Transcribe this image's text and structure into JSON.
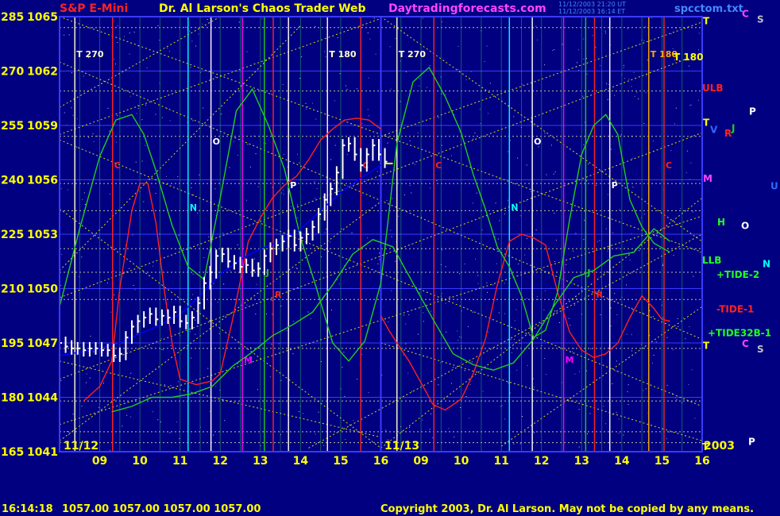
{
  "header": {
    "symbol": "S&P E-Mini",
    "author": "Dr. Al Larson's Chaos Trader Web",
    "site": "Daytradingforecasts.com",
    "stamp_line1": "11/12/2003 21:20 UT",
    "stamp_line2": "11/12/2003 16:14 ET",
    "file": "spcctom.txt"
  },
  "footer": {
    "time": "16:14:18",
    "ohlc": "1057.00 1057.00 1057.00 1057.00",
    "copyright": "Copyright 2003, Dr. Al Larson. May not be copied by any means."
  },
  "colors": {
    "background": "#000080",
    "price_bars": "#ffffff",
    "red_curve": "#ff2020",
    "green_curve": "#22cc22",
    "blue_curve": "#0000ff",
    "gann_lines": "#ffff00",
    "magenta": "#ff00ff",
    "cyan": "#00ffff",
    "title_red": "#ff2222",
    "title_yellow": "#ffff00",
    "title_magenta": "#ff44ff"
  },
  "chart_data": {
    "type": "line",
    "title": "S&P E-Mini",
    "xlabel": "",
    "ylabel": "",
    "left_axis_labels": [
      "285",
      "270",
      "255",
      "240",
      "225",
      "210",
      "195",
      "180",
      "165"
    ],
    "price_labels": [
      "1065",
      "1062",
      "1059",
      "1056",
      "1053",
      "1050",
      "1047",
      "1044",
      "1041"
    ],
    "ylim": [
      1041,
      1065
    ],
    "x_ticks": [
      "09",
      "10",
      "11",
      "12",
      "13",
      "14",
      "15",
      "16",
      "09",
      "10",
      "11",
      "12",
      "13",
      "14",
      "15",
      "16"
    ],
    "date_labels": [
      "11/12",
      "11/13",
      "2003"
    ],
    "grid": true,
    "series": [
      {
        "kind": "price",
        "x": [
          8.0,
          8.15,
          8.3,
          8.45,
          8.6,
          8.75,
          8.9,
          9.05,
          9.2,
          9.35,
          9.5,
          9.65,
          9.8,
          9.95,
          10.1,
          10.25,
          10.4,
          10.55,
          10.7,
          10.85,
          11.0,
          11.15,
          11.3,
          11.45,
          11.6,
          11.75,
          11.9,
          12.05,
          12.2,
          12.35,
          12.5,
          12.65,
          12.8,
          12.95,
          13.1,
          13.25,
          13.4,
          13.55,
          13.7,
          13.85,
          14.0,
          14.15,
          14.3,
          14.45,
          14.6,
          14.75,
          14.9,
          15.05,
          15.2,
          15.35,
          15.5,
          15.65,
          15.8,
          15.95,
          16.1
        ],
        "values": [
          1047.0,
          1046.8,
          1046.7,
          1046.7,
          1046.6,
          1046.7,
          1046.7,
          1046.6,
          1046.6,
          1046.3,
          1046.4,
          1047.3,
          1047.9,
          1048.2,
          1048.4,
          1048.6,
          1048.3,
          1048.5,
          1048.4,
          1048.7,
          1048.2,
          1048.1,
          1048.4,
          1049.2,
          1050.3,
          1050.9,
          1051.8,
          1051.9,
          1051.5,
          1051.4,
          1051.2,
          1051.3,
          1051.0,
          1051.1,
          1051.8,
          1052.2,
          1052.4,
          1052.6,
          1052.9,
          1052.4,
          1052.8,
          1053.0,
          1053.4,
          1054.1,
          1054.9,
          1055.5,
          1056.4,
          1057.9,
          1058.0,
          1057.4,
          1056.8,
          1057.4,
          1057.9,
          1057.4,
          1057.0
        ]
      },
      {
        "kind": "red",
        "x": [
          8.6,
          9.0,
          9.3,
          9.5,
          9.8,
          10.0,
          10.2,
          10.4,
          10.6,
          10.8,
          11.0,
          11.4,
          11.8,
          12.0,
          12.3,
          12.7,
          13.0,
          13.3,
          13.6,
          13.9,
          14.2,
          14.5,
          14.8,
          15.1,
          15.4,
          15.7,
          16.0
        ],
        "values": [
          1043.8,
          1044.6,
          1046.0,
          1050.0,
          1054.3,
          1055.8,
          1055.8,
          1053.6,
          1050.0,
          1047.0,
          1045.0,
          1044.7,
          1044.9,
          1045.3,
          1048.2,
          1052.6,
          1053.9,
          1055.0,
          1055.7,
          1056.2,
          1057.1,
          1058.2,
          1058.8,
          1059.3,
          1059.4,
          1059.3,
          1058.8
        ]
      },
      {
        "kind": "red",
        "x": [
          16.0,
          16.2,
          16.4,
          16.7,
          17.0,
          17.3,
          17.6,
          18.0,
          18.3,
          18.6,
          18.9,
          19.2,
          19.5,
          19.8,
          20.1,
          20.4,
          20.7,
          21.0,
          21.3,
          21.6,
          21.9,
          22.2,
          22.5,
          22.8,
          23.0,
          23.2
        ],
        "values": [
          1048.5,
          1047.7,
          1047.0,
          1046.0,
          1044.8,
          1043.6,
          1043.3,
          1043.9,
          1045.3,
          1047.2,
          1050.2,
          1052.6,
          1053.0,
          1052.8,
          1052.4,
          1049.8,
          1047.6,
          1046.6,
          1046.2,
          1046.4,
          1047.0,
          1048.4,
          1049.6,
          1048.9,
          1048.3,
          1048.2
        ]
      },
      {
        "kind": "green",
        "x": [
          8.0,
          8.5,
          9.0,
          9.4,
          9.8,
          10.1,
          10.4,
          10.8,
          11.2,
          11.6,
          12.0,
          12.4,
          12.8,
          13.2,
          13.6,
          14.0,
          14.4,
          14.8,
          15.2,
          15.6,
          16.0,
          16.4,
          16.8,
          17.2,
          17.6,
          18.0,
          18.3,
          18.6,
          18.9,
          19.2,
          19.5,
          19.8,
          20.1,
          20.4,
          20.7,
          21.0,
          21.3,
          21.6,
          21.9,
          22.2,
          22.5,
          22.8,
          23.2
        ],
        "values": [
          1049.0,
          1053.3,
          1057.3,
          1059.3,
          1059.6,
          1058.5,
          1056.5,
          1053.5,
          1051.2,
          1050.5,
          1055.0,
          1059.8,
          1061.0,
          1059.0,
          1056.6,
          1052.8,
          1050.0,
          1047.0,
          1046.0,
          1047.1,
          1050.3,
          1058.0,
          1061.4,
          1062.2,
          1060.6,
          1058.6,
          1056.3,
          1054.4,
          1052.3,
          1051.2,
          1049.6,
          1047.3,
          1047.7,
          1049.8,
          1053.8,
          1057.4,
          1059.0,
          1059.6,
          1058.5,
          1054.9,
          1053.4,
          1052.5,
          1052.0
        ]
      },
      {
        "kind": "green",
        "x": [
          9.3,
          9.8,
          10.3,
          10.8,
          11.3,
          11.8,
          12.3,
          12.8,
          13.3,
          13.8,
          14.3,
          14.8,
          15.3,
          15.8,
          16.3,
          16.8,
          17.3,
          17.8,
          18.3,
          18.8,
          19.3,
          19.8,
          20.3,
          20.8,
          21.3,
          21.8,
          22.3,
          22.8,
          23.2
        ],
        "values": [
          1043.2,
          1043.5,
          1044.0,
          1044.0,
          1044.2,
          1044.6,
          1045.7,
          1046.5,
          1047.4,
          1048.0,
          1048.7,
          1050.2,
          1051.9,
          1052.7,
          1052.3,
          1050.3,
          1048.3,
          1046.4,
          1045.8,
          1045.5,
          1045.9,
          1047.2,
          1049.0,
          1050.6,
          1051.0,
          1051.8,
          1052.0,
          1053.3,
          1052.6
        ]
      },
      {
        "kind": "blue",
        "x": [
          8.0,
          8.8,
          9.5,
          10.0,
          10.5,
          11.0,
          11.5,
          12.0,
          12.5,
          13.0,
          13.5,
          14.0,
          14.5,
          15.0,
          15.5,
          16.0
        ],
        "values": [
          1046.3,
          1046.6,
          1047.0,
          1047.5,
          1048.0,
          1048.6,
          1049.6,
          1050.8,
          1051.6,
          1052.2,
          1052.6,
          1053.3,
          1054.3,
          1055.3,
          1056.1,
          1056.8
        ]
      }
    ],
    "vertical_lines": [
      {
        "x": 8.38,
        "color": "#ffffcc",
        "label": "T 270"
      },
      {
        "x": 9.32,
        "color": "#ff2222",
        "label": "C"
      },
      {
        "x": 11.2,
        "color": "#00ffff",
        "label": "N"
      },
      {
        "x": 11.77,
        "color": "#ffffff",
        "label": "O"
      },
      {
        "x": 12.55,
        "color": "#ff00ff",
        "label": "M"
      },
      {
        "x": 13.32,
        "color": "#ff2222",
        "label": "R"
      },
      {
        "x": 13.1,
        "color": "#22cc22",
        "label": "J"
      },
      {
        "x": 13.7,
        "color": "#ffffff",
        "label": "P"
      },
      {
        "x": 14.67,
        "color": "#ffffcc",
        "label": "T 180"
      },
      {
        "x": 15.5,
        "color": "#ff2222",
        "label": "C"
      },
      {
        "x": 16.4,
        "color": "#ffffcc",
        "label": "T 270"
      },
      {
        "x": 17.32,
        "color": "#ff2222",
        "label": "C"
      },
      {
        "x": 19.2,
        "color": "#00ffff",
        "label": "N"
      },
      {
        "x": 19.77,
        "color": "#ffffff",
        "label": "O"
      },
      {
        "x": 20.55,
        "color": "#ff00ff",
        "label": "M"
      },
      {
        "x": 21.32,
        "color": "#ff2222",
        "label": "R"
      },
      {
        "x": 21.1,
        "color": "#22cc22",
        "label": "J"
      },
      {
        "x": 21.7,
        "color": "#ffffff",
        "label": "P"
      },
      {
        "x": 22.67,
        "color": "#ffaa00",
        "label": "T 180"
      },
      {
        "x": 23.05,
        "color": "#ff2222",
        "label": "C"
      }
    ],
    "right_labels": [
      {
        "text": "T",
        "color": "#ffff00",
        "price": 1064.8
      },
      {
        "text": "C",
        "color": "#ff44ff",
        "price": 1065.2
      },
      {
        "text": "S",
        "color": "#c0c0c0",
        "price": 1064.9
      },
      {
        "text": "T 180",
        "color": "#ffff00",
        "price": 1062.8
      },
      {
        "text": "ULB",
        "color": "#ff2222",
        "price": 1061.1
      },
      {
        "text": "P",
        "color": "#ffffff",
        "price": 1059.8
      },
      {
        "text": "T",
        "color": "#ffff00",
        "price": 1059.2
      },
      {
        "text": "V",
        "color": "#3366ff",
        "price": 1058.8
      },
      {
        "text": "R",
        "color": "#ff2222",
        "price": 1058.6
      },
      {
        "text": "J",
        "color": "#22cc22",
        "price": 1058.9
      },
      {
        "text": "M",
        "color": "#ff44ff",
        "price": 1056.1
      },
      {
        "text": "U",
        "color": "#3366ff",
        "price": 1055.7
      },
      {
        "text": "H",
        "color": "#22ff22",
        "price": 1053.7
      },
      {
        "text": "O",
        "color": "#ffffff",
        "price": 1053.5
      },
      {
        "text": "LLB",
        "color": "#22ff22",
        "price": 1051.6
      },
      {
        "text": "N",
        "color": "#00ffff",
        "price": 1051.4
      },
      {
        "text": "+TIDE-2",
        "color": "#22ff22",
        "price": 1050.8
      },
      {
        "text": "-TIDE-1",
        "color": "#ff2222",
        "price": 1048.9
      },
      {
        "text": "+TIDE32B-1",
        "color": "#22ff22",
        "price": 1047.6
      },
      {
        "text": "T",
        "color": "#ffff00",
        "price": 1046.9
      },
      {
        "text": "C",
        "color": "#ff44ff",
        "price": 1047.0
      },
      {
        "text": "S",
        "color": "#c0c0c0",
        "price": 1046.7
      },
      {
        "text": "T",
        "color": "#ffff00",
        "price": 1041.3
      },
      {
        "text": "P",
        "color": "#ffffff",
        "price": 1041.6
      }
    ]
  }
}
